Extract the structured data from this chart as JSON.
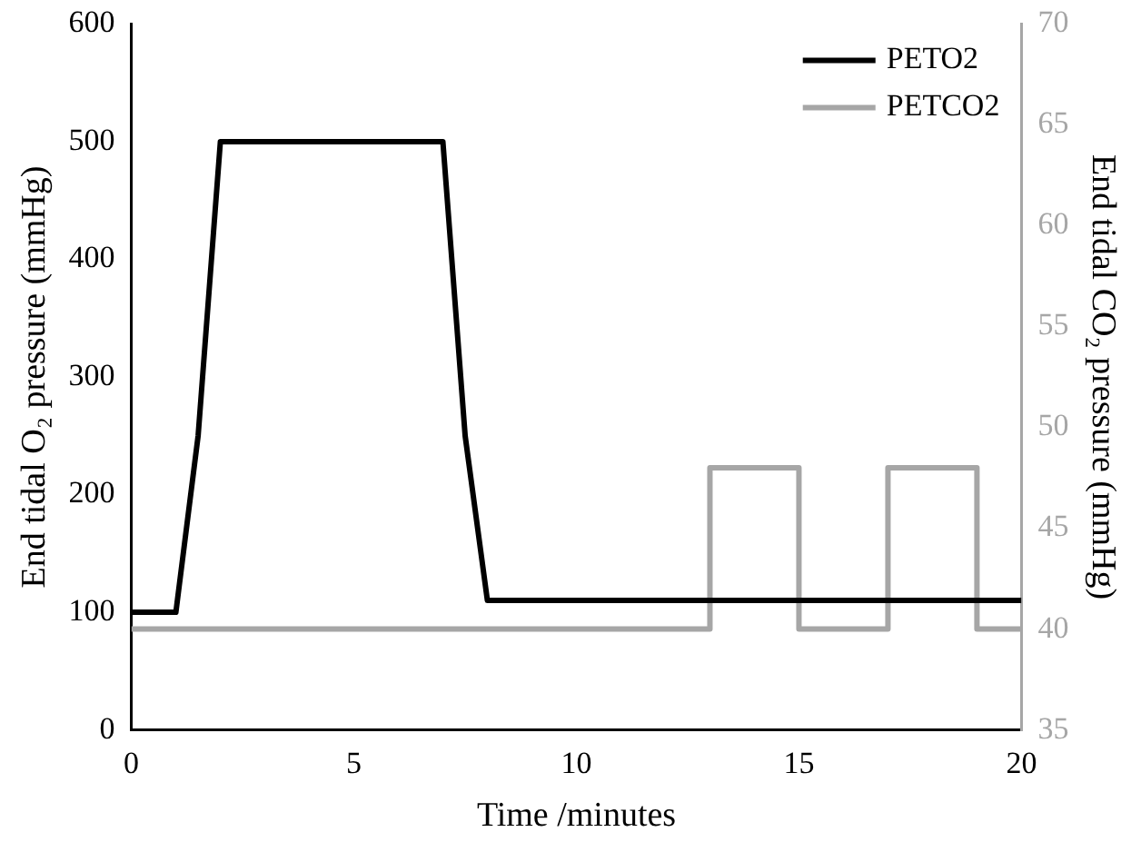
{
  "chart_data": {
    "type": "line",
    "xlabel": "Time /minutes",
    "ylabel": "End tidal O₂ pressure (mmHg)",
    "y2label": "End tidal CO₂ pressure (mmHg)",
    "xlim": [
      0,
      20
    ],
    "xticks": [
      0,
      5,
      10,
      15,
      20
    ],
    "ylim": [
      0,
      600
    ],
    "yticks": [
      0,
      100,
      200,
      300,
      400,
      500,
      600
    ],
    "y2lim": [
      35,
      70
    ],
    "y2ticks": [
      35,
      40,
      45,
      50,
      55,
      60,
      65,
      70
    ],
    "grid": false,
    "legend": "top right",
    "marker": "none",
    "line_style": "solid",
    "series": [
      {
        "name": "PETO2",
        "color": "#000000",
        "x": [
          0,
          1,
          1.5,
          2,
          7,
          7.5,
          8,
          20
        ],
        "values": [
          100,
          100,
          250,
          500,
          500,
          250,
          110,
          110
        ]
      },
      {
        "name": "PETCO2",
        "color": "#a6a6a6",
        "axis": "y2",
        "x": [
          0,
          13,
          13,
          15,
          15,
          17,
          17,
          19,
          19,
          20
        ],
        "values": [
          40,
          40,
          48,
          48,
          40,
          40,
          48,
          48,
          40,
          40
        ]
      }
    ]
  }
}
